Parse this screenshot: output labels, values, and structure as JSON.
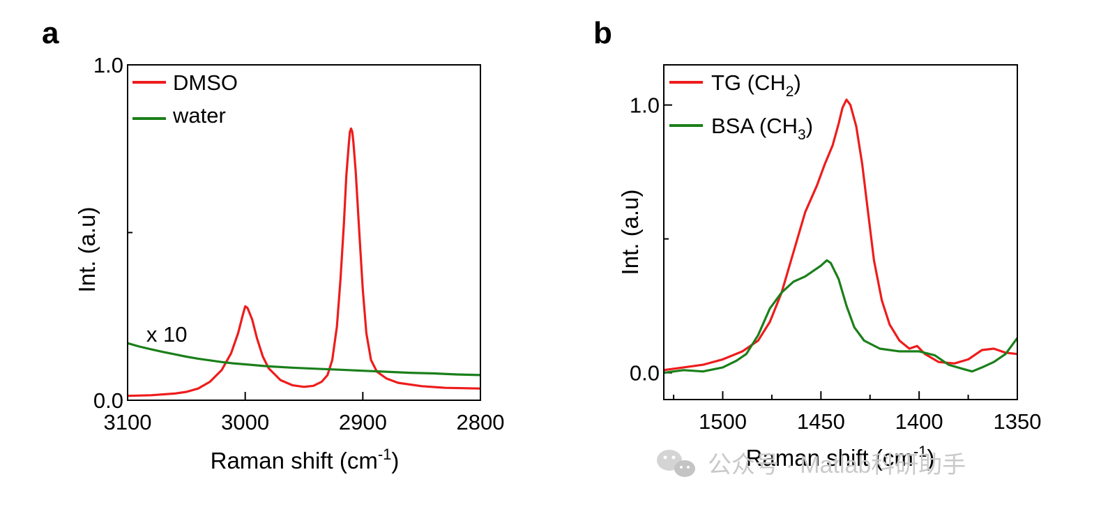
{
  "chart_data": [
    {
      "panel": "a",
      "type": "line",
      "xlabel_main": "Raman shift (cm",
      "xlabel_sup": "-1",
      "xlabel_close": ")",
      "ylabel": "Int. (a.u)",
      "xlim": [
        3100,
        2800
      ],
      "ylim": [
        0.0,
        1.0
      ],
      "xticks": [
        "3100",
        "3000",
        "2900",
        "2800"
      ],
      "xtick_values": [
        3100,
        3000,
        2900,
        2800
      ],
      "yticks": [
        "0.0",
        "1.0"
      ],
      "ytick_values": [
        0.0,
        1.0
      ],
      "yminor_values": [
        0.5
      ],
      "annotation": "x 10",
      "annotation_color": "#1a7f1a",
      "annotation_at": [
        3090,
        0.195
      ],
      "series": [
        {
          "name": "DMSO",
          "color": "#ee1c1c",
          "points": [
            [
              3100,
              0.013
            ],
            [
              3080,
              0.015
            ],
            [
              3060,
              0.02
            ],
            [
              3050,
              0.025
            ],
            [
              3040,
              0.035
            ],
            [
              3030,
              0.055
            ],
            [
              3020,
              0.09
            ],
            [
              3012,
              0.14
            ],
            [
              3006,
              0.2
            ],
            [
              3002,
              0.255
            ],
            [
              3000,
              0.28
            ],
            [
              2998,
              0.275
            ],
            [
              2994,
              0.24
            ],
            [
              2990,
              0.185
            ],
            [
              2985,
              0.13
            ],
            [
              2980,
              0.095
            ],
            [
              2970,
              0.06
            ],
            [
              2960,
              0.045
            ],
            [
              2950,
              0.04
            ],
            [
              2942,
              0.043
            ],
            [
              2935,
              0.055
            ],
            [
              2930,
              0.075
            ],
            [
              2926,
              0.12
            ],
            [
              2922,
              0.22
            ],
            [
              2919,
              0.36
            ],
            [
              2916,
              0.53
            ],
            [
              2914,
              0.67
            ],
            [
              2912,
              0.76
            ],
            [
              2911,
              0.8
            ],
            [
              2910,
              0.81
            ],
            [
              2909,
              0.8
            ],
            [
              2908,
              0.77
            ],
            [
              2906,
              0.68
            ],
            [
              2903,
              0.5
            ],
            [
              2900,
              0.33
            ],
            [
              2897,
              0.2
            ],
            [
              2893,
              0.12
            ],
            [
              2888,
              0.085
            ],
            [
              2880,
              0.065
            ],
            [
              2870,
              0.052
            ],
            [
              2850,
              0.042
            ],
            [
              2830,
              0.037
            ],
            [
              2800,
              0.035
            ]
          ]
        },
        {
          "name": "water",
          "color": "#1a7f1a",
          "points": [
            [
              3100,
              0.17
            ],
            [
              3090,
              0.16
            ],
            [
              3080,
              0.152
            ],
            [
              3070,
              0.144
            ],
            [
              3060,
              0.137
            ],
            [
              3050,
              0.13
            ],
            [
              3040,
              0.124
            ],
            [
              3030,
              0.119
            ],
            [
              3020,
              0.114
            ],
            [
              3010,
              0.11
            ],
            [
              3000,
              0.107
            ],
            [
              2980,
              0.101
            ],
            [
              2960,
              0.097
            ],
            [
              2940,
              0.094
            ],
            [
              2920,
              0.091
            ],
            [
              2900,
              0.088
            ],
            [
              2880,
              0.085
            ],
            [
              2860,
              0.082
            ],
            [
              2840,
              0.08
            ],
            [
              2820,
              0.077
            ],
            [
              2800,
              0.075
            ]
          ]
        }
      ]
    },
    {
      "panel": "b",
      "type": "line",
      "xlabel_main": "Raman shift (cm",
      "xlabel_sup": "-1",
      "xlabel_close": ")",
      "ylabel": "Int. (a.u)",
      "xlim": [
        1530,
        1350
      ],
      "ylim": [
        -0.1,
        1.15
      ],
      "xticks": [
        "1500",
        "1450",
        "1400",
        "1350"
      ],
      "xtick_values": [
        1500,
        1450,
        1400,
        1350
      ],
      "xminor_values": [
        1525,
        1475,
        1425,
        1375
      ],
      "yticks": [
        "0.0",
        "1.0"
      ],
      "ytick_values": [
        0.0,
        1.0
      ],
      "yminor_values": [
        0.5
      ],
      "series": [
        {
          "name": "TG (CH",
          "name_sub": "2",
          "name_close": ")",
          "color": "#ee1c1c",
          "points": [
            [
              1530,
              0.01
            ],
            [
              1520,
              0.02
            ],
            [
              1510,
              0.03
            ],
            [
              1500,
              0.05
            ],
            [
              1490,
              0.08
            ],
            [
              1482,
              0.12
            ],
            [
              1476,
              0.19
            ],
            [
              1470,
              0.3
            ],
            [
              1464,
              0.45
            ],
            [
              1458,
              0.6
            ],
            [
              1452,
              0.7
            ],
            [
              1448,
              0.78
            ],
            [
              1444,
              0.85
            ],
            [
              1441,
              0.93
            ],
            [
              1439,
              0.99
            ],
            [
              1437,
              1.02
            ],
            [
              1435,
              1.0
            ],
            [
              1432,
              0.92
            ],
            [
              1429,
              0.78
            ],
            [
              1426,
              0.6
            ],
            [
              1423,
              0.42
            ],
            [
              1419,
              0.27
            ],
            [
              1415,
              0.18
            ],
            [
              1410,
              0.12
            ],
            [
              1405,
              0.09
            ],
            [
              1401,
              0.1
            ],
            [
              1397,
              0.07
            ],
            [
              1390,
              0.04
            ],
            [
              1382,
              0.035
            ],
            [
              1375,
              0.05
            ],
            [
              1368,
              0.085
            ],
            [
              1362,
              0.09
            ],
            [
              1356,
              0.075
            ],
            [
              1350,
              0.07
            ]
          ]
        },
        {
          "name": "BSA (CH",
          "name_sub": "3",
          "name_close": ")",
          "color": "#1a7f1a",
          "points": [
            [
              1530,
              0.0
            ],
            [
              1520,
              0.01
            ],
            [
              1510,
              0.005
            ],
            [
              1500,
              0.02
            ],
            [
              1493,
              0.045
            ],
            [
              1488,
              0.07
            ],
            [
              1482,
              0.14
            ],
            [
              1476,
              0.24
            ],
            [
              1470,
              0.3
            ],
            [
              1464,
              0.34
            ],
            [
              1458,
              0.36
            ],
            [
              1454,
              0.38
            ],
            [
              1450,
              0.4
            ],
            [
              1447,
              0.42
            ],
            [
              1445,
              0.41
            ],
            [
              1441,
              0.35
            ],
            [
              1437,
              0.25
            ],
            [
              1433,
              0.17
            ],
            [
              1428,
              0.12
            ],
            [
              1420,
              0.09
            ],
            [
              1410,
              0.08
            ],
            [
              1400,
              0.08
            ],
            [
              1392,
              0.065
            ],
            [
              1385,
              0.03
            ],
            [
              1378,
              0.015
            ],
            [
              1373,
              0.005
            ],
            [
              1368,
              0.02
            ],
            [
              1362,
              0.04
            ],
            [
              1356,
              0.07
            ],
            [
              1350,
              0.13
            ]
          ]
        }
      ]
    }
  ],
  "watermark": "公众号 · Matlab科研助手",
  "watermark_icon": "wechat-icon"
}
